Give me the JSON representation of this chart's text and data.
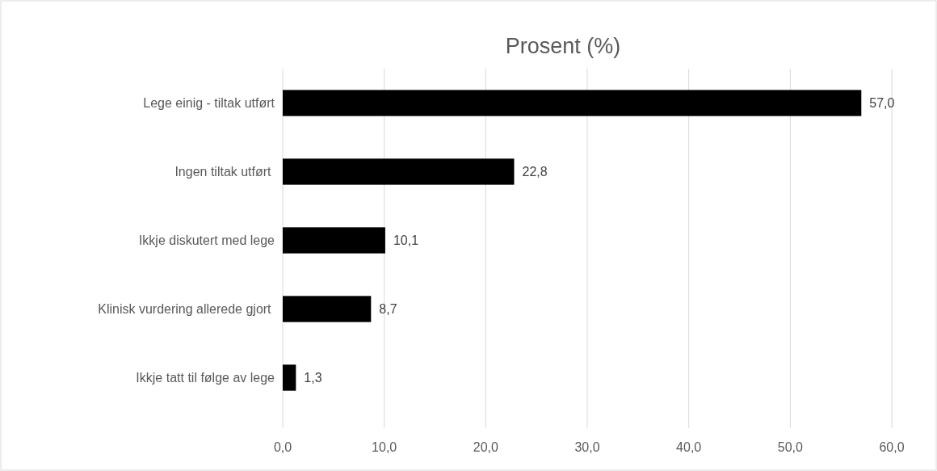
{
  "chart_data": {
    "type": "bar",
    "orientation": "horizontal",
    "title": "Prosent (%)",
    "categories": [
      "Lege einig - tiltak utført",
      "Ingen tiltak utført ",
      "Ikkje diskutert med lege",
      "Klinisk vurdering allerede gjort ",
      "Ikkje tatt til følge av lege"
    ],
    "values": [
      57.0,
      22.8,
      10.1,
      8.7,
      1.3
    ],
    "value_labels": [
      "57,0",
      "22,8",
      "10,1",
      "8,7",
      "1,3"
    ],
    "color": "#000000",
    "xlim": [
      0,
      60
    ],
    "xticks": [
      {
        "value": 0,
        "label": "0,0"
      },
      {
        "value": 10,
        "label": "10,0"
      },
      {
        "value": 20,
        "label": "20,0"
      },
      {
        "value": 30,
        "label": "30,0"
      },
      {
        "value": 40,
        "label": "40,0"
      },
      {
        "value": 50,
        "label": "50,0"
      },
      {
        "value": 60,
        "label": "60,0"
      }
    ],
    "grid": "x"
  }
}
